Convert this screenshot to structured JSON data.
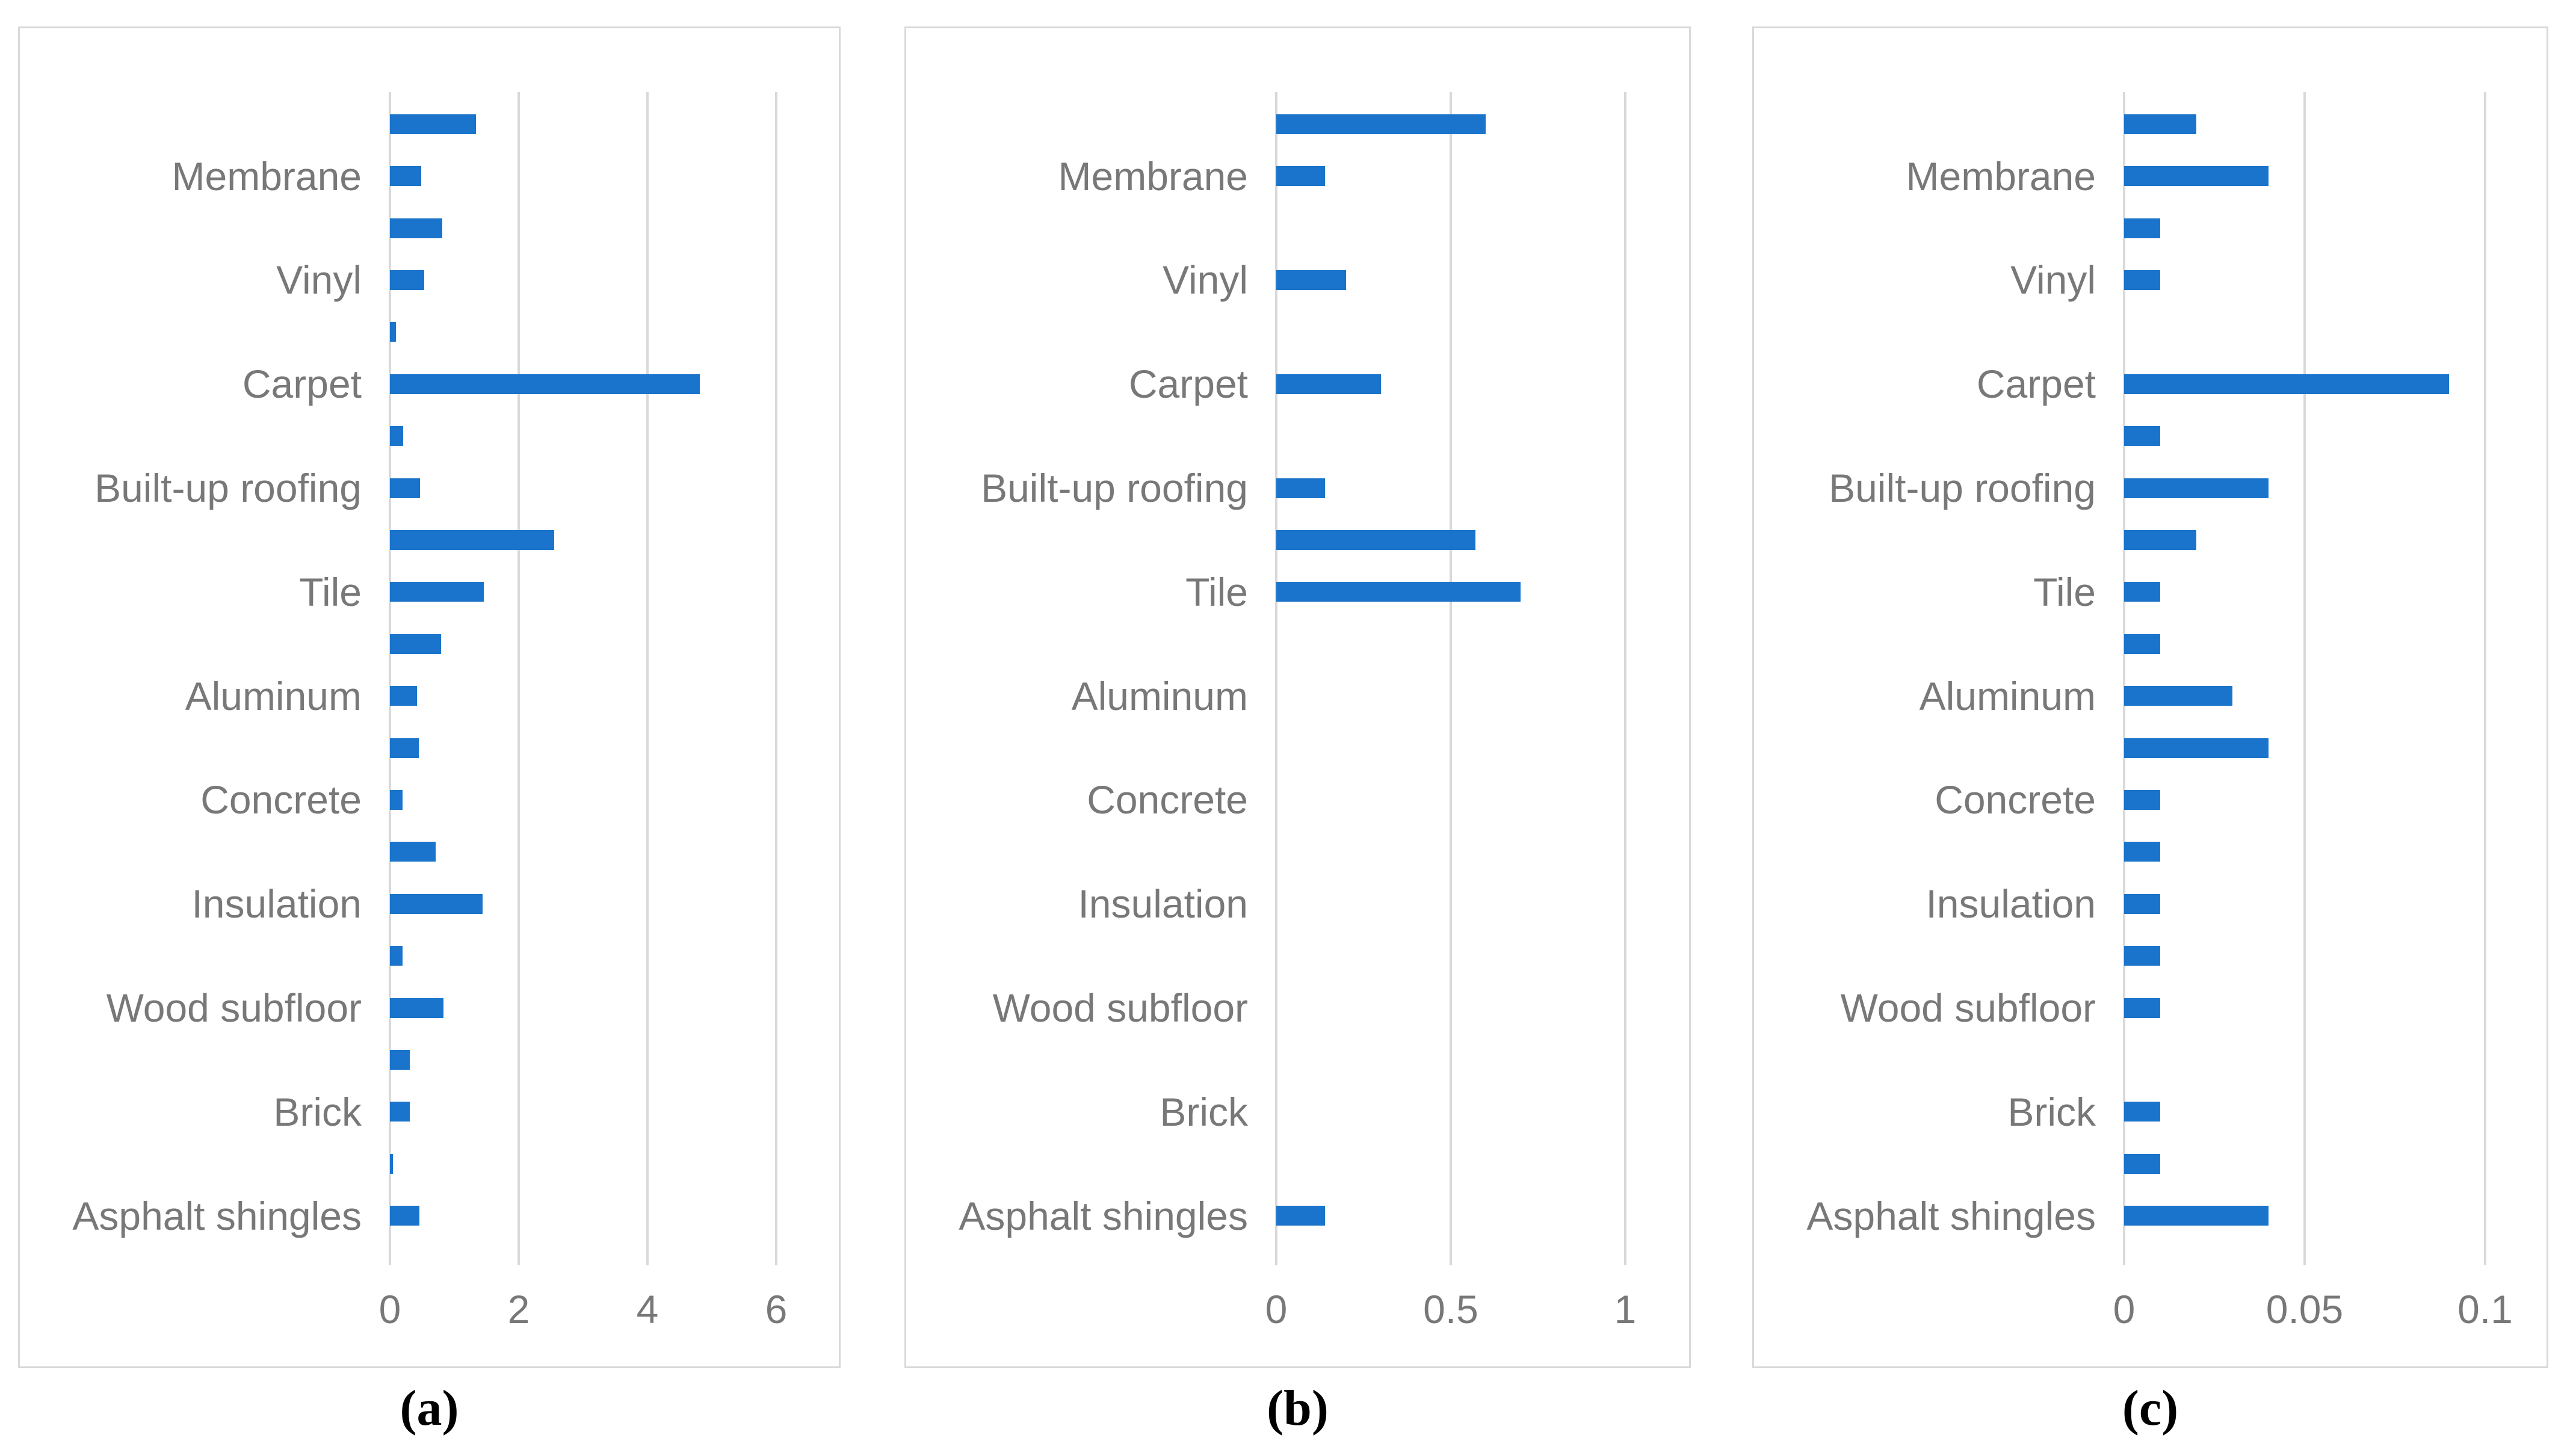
{
  "figure": {
    "description": "Three horizontal paired-bar chart panels comparing building materials",
    "background": "#ffffff",
    "colors": {
      "bar": "#1B74CB",
      "gridline": "#D9D9D9",
      "panel_border": "#D9D9D9",
      "label_text": "#787878",
      "tick_text": "#787878",
      "caption_text": "#000000"
    },
    "categories": [
      "Membrane",
      "Vinyl",
      "Carpet",
      "Built-up roofing",
      "Tile",
      "Aluminum",
      "Concrete",
      "Insulation",
      "Wood subfloor",
      "Brick",
      "Asphalt shingles"
    ]
  },
  "chart_data": [
    {
      "type": "bar",
      "orientation": "horizontal",
      "caption": "(a)",
      "legend": "none",
      "grid": "vertical-major",
      "categories": [
        "Membrane",
        "Vinyl",
        "Carpet",
        "Built-up roofing",
        "Tile",
        "Aluminum",
        "Concrete",
        "Insulation",
        "Wood subfloor",
        "Brick",
        "Asphalt shingles"
      ],
      "series": [
        {
          "name": "upper-bar-of-pair",
          "values": [
            1.34,
            0.81,
            0.09,
            0.21,
            2.55,
            0.79,
            0.45,
            0.71,
            0.2,
            0.31,
            0.05
          ]
        },
        {
          "name": "labeled-bar-of-pair",
          "values": [
            0.49,
            0.53,
            4.81,
            0.47,
            1.46,
            0.42,
            0.2,
            1.44,
            0.83,
            0.31,
            0.46
          ]
        }
      ],
      "xticks": [
        0,
        2,
        4,
        6
      ],
      "xtick_labels": [
        "0",
        "2",
        "4",
        "6"
      ],
      "xlim": [
        0,
        7.0
      ]
    },
    {
      "type": "bar",
      "orientation": "horizontal",
      "caption": "(b)",
      "legend": "none",
      "grid": "vertical-major",
      "categories": [
        "Membrane",
        "Vinyl",
        "Carpet",
        "Built-up roofing",
        "Tile",
        "Aluminum",
        "Concrete",
        "Insulation",
        "Wood subfloor",
        "Brick",
        "Asphalt shingles"
      ],
      "series": [
        {
          "name": "upper-bar-of-pair",
          "values": [
            0.6,
            0,
            0,
            0,
            0.57,
            0,
            0,
            0,
            0,
            0,
            0
          ]
        },
        {
          "name": "labeled-bar-of-pair",
          "values": [
            0.14,
            0.2,
            0.3,
            0.14,
            0.7,
            0,
            0,
            0,
            0,
            0,
            0.14
          ]
        }
      ],
      "xticks": [
        0,
        0.5,
        1
      ],
      "xtick_labels": [
        "0",
        "0.5",
        "1"
      ],
      "xlim": [
        0,
        1.19
      ]
    },
    {
      "type": "bar",
      "orientation": "horizontal",
      "caption": "(c)",
      "legend": "none",
      "grid": "vertical-major",
      "categories": [
        "Membrane",
        "Vinyl",
        "Carpet",
        "Built-up roofing",
        "Tile",
        "Aluminum",
        "Concrete",
        "Insulation",
        "Wood subfloor",
        "Brick",
        "Asphalt shingles"
      ],
      "series": [
        {
          "name": "upper-bar-of-pair",
          "values": [
            0.02,
            0.01,
            0,
            0.01,
            0.02,
            0.01,
            0.04,
            0.01,
            0.01,
            0,
            0.01
          ]
        },
        {
          "name": "labeled-bar-of-pair",
          "values": [
            0.04,
            0.01,
            0.09,
            0.04,
            0.01,
            0.03,
            0.01,
            0.01,
            0.01,
            0.01,
            0.04
          ]
        }
      ],
      "xticks": [
        0,
        0.05,
        0.1
      ],
      "xtick_labels": [
        "0",
        "0.05",
        "0.1"
      ],
      "xlim": [
        0,
        0.118
      ]
    }
  ]
}
